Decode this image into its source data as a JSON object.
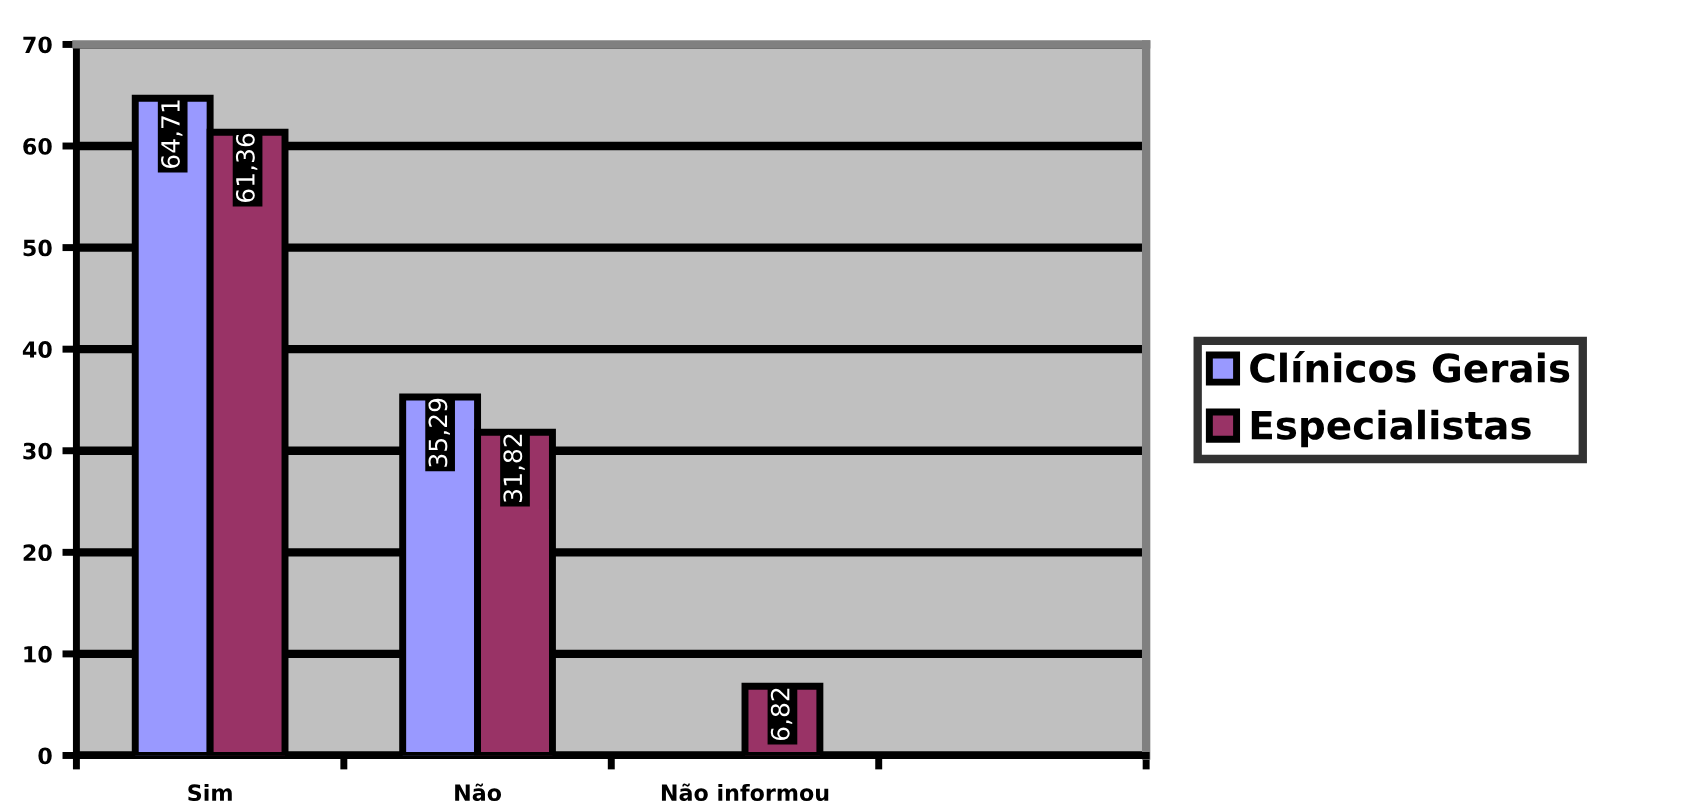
{
  "chart_data": {
    "type": "bar",
    "categories": [
      "Sim",
      "Não",
      "Não informou",
      null
    ],
    "series": [
      {
        "name": "Clínicos Gerais",
        "color": "#9999ff",
        "values": [
          64.71,
          35.29,
          null,
          null
        ],
        "value_labels": [
          "64,71",
          "35,29",
          null,
          null
        ]
      },
      {
        "name": "Especialistas",
        "color": "#993366",
        "values": [
          61.36,
          31.82,
          6.82,
          null
        ],
        "value_labels": [
          "61,36",
          "31,82",
          "6,82",
          null
        ]
      }
    ],
    "ylim": [
      0,
      70
    ],
    "yticks": [
      0,
      10,
      20,
      30,
      40,
      50,
      60,
      70
    ],
    "grid": "y",
    "legend": "right"
  }
}
